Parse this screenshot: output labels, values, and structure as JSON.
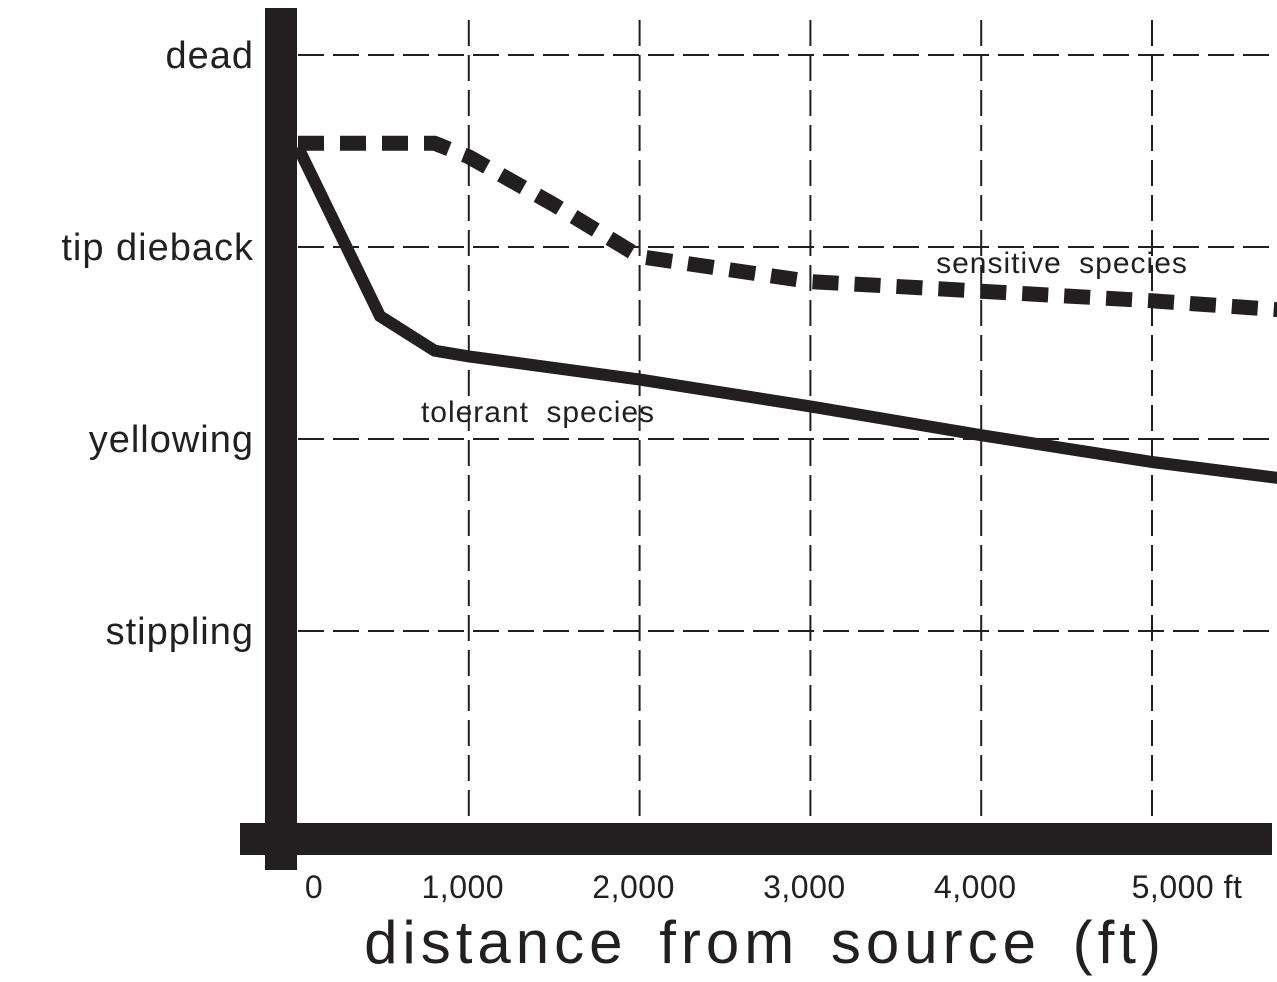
{
  "chart_data": {
    "type": "line",
    "title": "",
    "xlabel": "distance from source (ft)",
    "ylabel": "",
    "x_ticks": [
      {
        "value": 0,
        "label": "0"
      },
      {
        "value": 1000,
        "label": "1,000"
      },
      {
        "value": 2000,
        "label": "2,000"
      },
      {
        "value": 3000,
        "label": "3,000"
      },
      {
        "value": 4000,
        "label": "4,000"
      },
      {
        "value": 5000,
        "label": "5,000 ft"
      }
    ],
    "y_levels": [
      {
        "value": 1,
        "label": "stippling"
      },
      {
        "value": 2,
        "label": "yellowing"
      },
      {
        "value": 3,
        "label": "tip dieback"
      },
      {
        "value": 4,
        "label": "dead"
      }
    ],
    "xlim": [
      0,
      5800
    ],
    "ylim": [
      0,
      4.2
    ],
    "grid": true,
    "grid_style": "dashed",
    "series": [
      {
        "name": "sensitive species",
        "style": "dashed",
        "x": [
          0,
          800,
          1000,
          1500,
          2000,
          3000,
          4000,
          5000,
          5800
        ],
        "y": [
          3.54,
          3.54,
          3.47,
          3.22,
          2.95,
          2.82,
          2.77,
          2.72,
          2.67
        ]
      },
      {
        "name": "tolerant species",
        "style": "solid",
        "x": [
          0,
          480,
          800,
          1000,
          2000,
          3000,
          4000,
          5000,
          5800
        ],
        "y": [
          3.52,
          2.64,
          2.46,
          2.43,
          2.31,
          2.17,
          2.02,
          1.88,
          1.79
        ]
      }
    ]
  },
  "colors": {
    "ink": "#231f20",
    "grid": "#231f20",
    "background": "#ffffff"
  }
}
